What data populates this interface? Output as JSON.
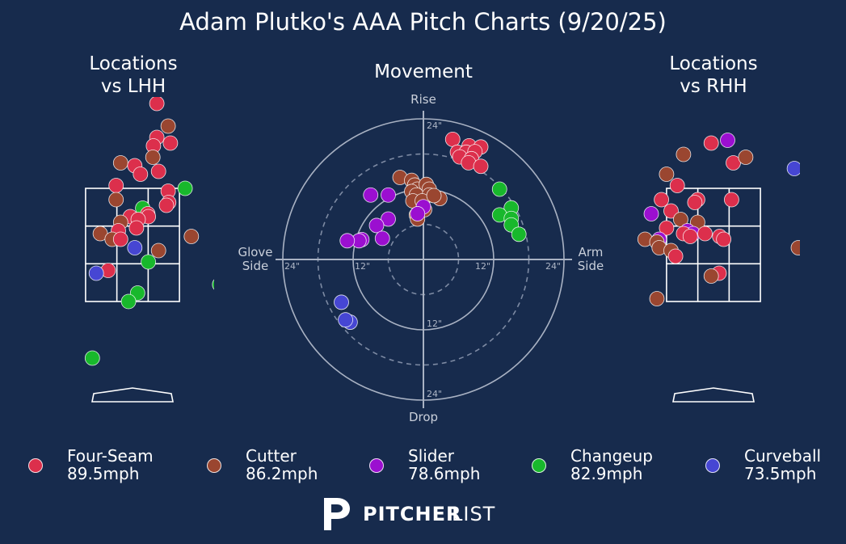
{
  "title": "Adam Plutko's AAA Pitch Charts (9/20/25)",
  "panels": {
    "lhh_title_1": "Locations",
    "lhh_title_2": "vs LHH",
    "movement_title": "Movement",
    "rhh_title_1": "Locations",
    "rhh_title_2": "vs RHH"
  },
  "movement_labels": {
    "top": "Rise",
    "bottom": "Drop",
    "left_1": "Glove",
    "left_2": "Side",
    "right_1": "Arm",
    "right_2": "Side",
    "ring_inner": "12\"",
    "ring_outer": "24\""
  },
  "brand": {
    "bold": "PITCHER",
    "light": "LIST"
  },
  "colors": {
    "background": "#172b4d",
    "Four-Seam": "#dc2f4c",
    "Cutter": "#9a4630",
    "Slider": "#9b0fd0",
    "Changeup": "#18b82c",
    "Curveball": "#4646d3"
  },
  "legend": [
    {
      "name": "Four-Seam",
      "speed": "89.5mph"
    },
    {
      "name": "Cutter",
      "speed": "86.2mph"
    },
    {
      "name": "Slider",
      "speed": "78.6mph"
    },
    {
      "name": "Changeup",
      "speed": "82.9mph"
    },
    {
      "name": "Curveball",
      "speed": "73.5mph"
    }
  ],
  "chart_data": [
    {
      "type": "scatter",
      "title": "Locations vs LHH",
      "xlim": [
        -2.6,
        2.6
      ],
      "ylim": [
        -0.5,
        5.0
      ],
      "strike_zone": {
        "x": [
          -0.83,
          0.83
        ],
        "z": [
          1.5,
          3.5
        ]
      },
      "points": [
        {
          "pitch": "Four-Seam",
          "x": 0.43,
          "z": 5.0
        },
        {
          "pitch": "Cutter",
          "x": 0.63,
          "z": 4.6
        },
        {
          "pitch": "Four-Seam",
          "x": 0.43,
          "z": 4.4
        },
        {
          "pitch": "Four-Seam",
          "x": 0.67,
          "z": 4.3
        },
        {
          "pitch": "Four-Seam",
          "x": 0.37,
          "z": 4.25
        },
        {
          "pitch": "Cutter",
          "x": 0.36,
          "z": 4.05
        },
        {
          "pitch": "Cutter",
          "x": -0.21,
          "z": 3.95
        },
        {
          "pitch": "Four-Seam",
          "x": 0.04,
          "z": 3.9
        },
        {
          "pitch": "Four-Seam",
          "x": 0.46,
          "z": 3.8
        },
        {
          "pitch": "Four-Seam",
          "x": 0.14,
          "z": 3.75
        },
        {
          "pitch": "Four-Seam",
          "x": -0.29,
          "z": 3.55
        },
        {
          "pitch": "Changeup",
          "x": 0.93,
          "z": 3.5
        },
        {
          "pitch": "Four-Seam",
          "x": 0.63,
          "z": 3.45
        },
        {
          "pitch": "Cutter",
          "x": -0.29,
          "z": 3.3
        },
        {
          "pitch": "Four-Seam",
          "x": 0.64,
          "z": 3.25
        },
        {
          "pitch": "Four-Seam",
          "x": 0.6,
          "z": 3.2
        },
        {
          "pitch": "Changeup",
          "x": 0.18,
          "z": 3.15
        },
        {
          "pitch": "Four-Seam",
          "x": 0.27,
          "z": 3.05
        },
        {
          "pitch": "Four-Seam",
          "x": -0.04,
          "z": 3.0
        },
        {
          "pitch": "Four-Seam",
          "x": 0.28,
          "z": 3.0
        },
        {
          "pitch": "Four-Seam",
          "x": 0.1,
          "z": 2.95
        },
        {
          "pitch": "Cutter",
          "x": -0.21,
          "z": 2.9
        },
        {
          "pitch": "Four-Seam",
          "x": 0.07,
          "z": 2.8
        },
        {
          "pitch": "Four-Seam",
          "x": -0.25,
          "z": 2.75
        },
        {
          "pitch": "Cutter",
          "x": -0.57,
          "z": 2.7
        },
        {
          "pitch": "Cutter",
          "x": -0.36,
          "z": 2.6
        },
        {
          "pitch": "Four-Seam",
          "x": -0.21,
          "z": 2.6
        },
        {
          "pitch": "Cutter",
          "x": 1.04,
          "z": 2.65
        },
        {
          "pitch": "Curveball",
          "x": 0.04,
          "z": 2.45
        },
        {
          "pitch": "Cutter",
          "x": 0.46,
          "z": 2.4
        },
        {
          "pitch": "Changeup",
          "x": 0.28,
          "z": 2.2
        },
        {
          "pitch": "Four-Seam",
          "x": -0.43,
          "z": 2.05
        },
        {
          "pitch": "Curveball",
          "x": -0.64,
          "z": 2.0
        },
        {
          "pitch": "Changeup",
          "x": 1.54,
          "z": 1.8
        },
        {
          "pitch": "Changeup",
          "x": 0.09,
          "z": 1.65
        },
        {
          "pitch": "Changeup",
          "x": -0.07,
          "z": 1.5
        },
        {
          "pitch": "Changeup",
          "x": -0.71,
          "z": 0.5
        }
      ]
    },
    {
      "type": "scatter",
      "title": "Movement",
      "units": "inches",
      "rings": [
        6,
        12,
        18,
        24
      ],
      "x_label_left": "Glove Side",
      "x_label_right": "Arm Side",
      "y_label_top": "Rise",
      "y_label_bottom": "Drop",
      "points": [
        {
          "pitch": "Four-Seam",
          "x": 5.0,
          "y": 20.5
        },
        {
          "pitch": "Four-Seam",
          "x": 7.8,
          "y": 19.4
        },
        {
          "pitch": "Four-Seam",
          "x": 9.8,
          "y": 19.2
        },
        {
          "pitch": "Four-Seam",
          "x": 5.8,
          "y": 18.3
        },
        {
          "pitch": "Four-Seam",
          "x": 7.3,
          "y": 18.3
        },
        {
          "pitch": "Four-Seam",
          "x": 8.8,
          "y": 18.4
        },
        {
          "pitch": "Four-Seam",
          "x": 6.2,
          "y": 17.5
        },
        {
          "pitch": "Four-Seam",
          "x": 8.2,
          "y": 17.2
        },
        {
          "pitch": "Four-Seam",
          "x": 7.7,
          "y": 16.5
        },
        {
          "pitch": "Four-Seam",
          "x": 9.8,
          "y": 15.9
        },
        {
          "pitch": "Cutter",
          "x": -4.0,
          "y": 14.0
        },
        {
          "pitch": "Cutter",
          "x": -2.0,
          "y": 13.5
        },
        {
          "pitch": "Cutter",
          "x": -1.5,
          "y": 12.7
        },
        {
          "pitch": "Cutter",
          "x": -1.0,
          "y": 12.0
        },
        {
          "pitch": "Cutter",
          "x": 0.5,
          "y": 12.8
        },
        {
          "pitch": "Cutter",
          "x": 1.0,
          "y": 12.0
        },
        {
          "pitch": "Cutter",
          "x": -2.0,
          "y": 11.6
        },
        {
          "pitch": "Cutter",
          "x": -1.2,
          "y": 11.0
        },
        {
          "pitch": "Cutter",
          "x": 1.0,
          "y": 11.0
        },
        {
          "pitch": "Cutter",
          "x": 2.8,
          "y": 10.4
        },
        {
          "pitch": "Cutter",
          "x": -1.8,
          "y": 10.0
        },
        {
          "pitch": "Cutter",
          "x": -0.2,
          "y": 10.0
        },
        {
          "pitch": "Cutter",
          "x": 1.8,
          "y": 10.9
        },
        {
          "pitch": "Cutter",
          "x": 0.2,
          "y": 8.5
        },
        {
          "pitch": "Cutter",
          "x": -1.2,
          "y": 7.6
        },
        {
          "pitch": "Cutter",
          "x": -1.0,
          "y": 6.9
        },
        {
          "pitch": "Slider",
          "x": -9.0,
          "y": 11.0
        },
        {
          "pitch": "Slider",
          "x": -6.0,
          "y": 11.0
        },
        {
          "pitch": "Slider",
          "x": 0.0,
          "y": 9.0
        },
        {
          "pitch": "Slider",
          "x": -1.0,
          "y": 7.8
        },
        {
          "pitch": "Slider",
          "x": -6.0,
          "y": 6.9
        },
        {
          "pitch": "Slider",
          "x": -8.0,
          "y": 5.8
        },
        {
          "pitch": "Slider",
          "x": -10.5,
          "y": 3.4
        },
        {
          "pitch": "Slider",
          "x": -11.0,
          "y": 3.2
        },
        {
          "pitch": "Slider",
          "x": -13.0,
          "y": 3.2
        },
        {
          "pitch": "Slider",
          "x": -7.0,
          "y": 3.6
        },
        {
          "pitch": "Changeup",
          "x": 13.0,
          "y": 12.0
        },
        {
          "pitch": "Changeup",
          "x": 15.0,
          "y": 8.8
        },
        {
          "pitch": "Changeup",
          "x": 13.0,
          "y": 7.6
        },
        {
          "pitch": "Changeup",
          "x": 15.0,
          "y": 7.0
        },
        {
          "pitch": "Changeup",
          "x": 15.0,
          "y": 5.9
        },
        {
          "pitch": "Changeup",
          "x": 16.3,
          "y": 4.3
        },
        {
          "pitch": "Curveball",
          "x": -14.0,
          "y": -7.3
        },
        {
          "pitch": "Curveball",
          "x": -12.5,
          "y": -10.7
        },
        {
          "pitch": "Curveball",
          "x": -13.3,
          "y": -10.3
        }
      ]
    },
    {
      "type": "scatter",
      "title": "Locations vs RHH",
      "xlim": [
        -2.6,
        2.6
      ],
      "ylim": [
        -0.5,
        5.0
      ],
      "strike_zone": {
        "x": [
          -0.83,
          0.83
        ],
        "z": [
          1.5,
          3.5
        ]
      },
      "points": [
        {
          "pitch": "Four-Seam",
          "x": -0.04,
          "z": 4.3
        },
        {
          "pitch": "Slider",
          "x": 0.25,
          "z": 4.35
        },
        {
          "pitch": "Cutter",
          "x": -0.53,
          "z": 4.1
        },
        {
          "pitch": "Four-Seam",
          "x": 0.35,
          "z": 3.95
        },
        {
          "pitch": "Cutter",
          "x": 0.57,
          "z": 4.05
        },
        {
          "pitch": "Curveball",
          "x": 1.43,
          "z": 3.85
        },
        {
          "pitch": "Cutter",
          "x": -0.83,
          "z": 3.75
        },
        {
          "pitch": "Four-Seam",
          "x": -0.64,
          "z": 3.55
        },
        {
          "pitch": "Four-Seam",
          "x": -0.92,
          "z": 3.3
        },
        {
          "pitch": "Four-Seam",
          "x": -0.28,
          "z": 3.3
        },
        {
          "pitch": "Four-Seam",
          "x": -0.33,
          "z": 3.25
        },
        {
          "pitch": "Four-Seam",
          "x": 0.32,
          "z": 3.3
        },
        {
          "pitch": "Four-Seam",
          "x": -0.75,
          "z": 3.1
        },
        {
          "pitch": "Slider",
          "x": -1.1,
          "z": 3.05
        },
        {
          "pitch": "Cutter",
          "x": -0.58,
          "z": 2.95
        },
        {
          "pitch": "Cutter",
          "x": -0.28,
          "z": 2.9
        },
        {
          "pitch": "Four-Seam",
          "x": -0.83,
          "z": 2.8
        },
        {
          "pitch": "Slider",
          "x": -0.46,
          "z": 2.75
        },
        {
          "pitch": "Slider",
          "x": -0.36,
          "z": 2.7
        },
        {
          "pitch": "Four-Seam",
          "x": -0.53,
          "z": 2.7
        },
        {
          "pitch": "Slider",
          "x": -0.96,
          "z": 2.6
        },
        {
          "pitch": "Four-Seam",
          "x": -0.41,
          "z": 2.65
        },
        {
          "pitch": "Four-Seam",
          "x": -0.15,
          "z": 2.7
        },
        {
          "pitch": "Cutter",
          "x": -1.21,
          "z": 2.6
        },
        {
          "pitch": "Cutter",
          "x": -1.0,
          "z": 2.55
        },
        {
          "pitch": "Four-Seam",
          "x": 0.11,
          "z": 2.65
        },
        {
          "pitch": "Four-Seam",
          "x": 0.18,
          "z": 2.6
        },
        {
          "pitch": "Cutter",
          "x": -0.96,
          "z": 2.45
        },
        {
          "pitch": "Cutter",
          "x": -0.75,
          "z": 2.4
        },
        {
          "pitch": "Four-Seam",
          "x": -0.67,
          "z": 2.3
        },
        {
          "pitch": "Cutter",
          "x": 1.5,
          "z": 2.45
        },
        {
          "pitch": "Four-Seam",
          "x": 0.1,
          "z": 2.0
        },
        {
          "pitch": "Cutter",
          "x": -0.04,
          "z": 1.95
        },
        {
          "pitch": "Cutter",
          "x": -1.0,
          "z": 1.55
        }
      ]
    }
  ]
}
